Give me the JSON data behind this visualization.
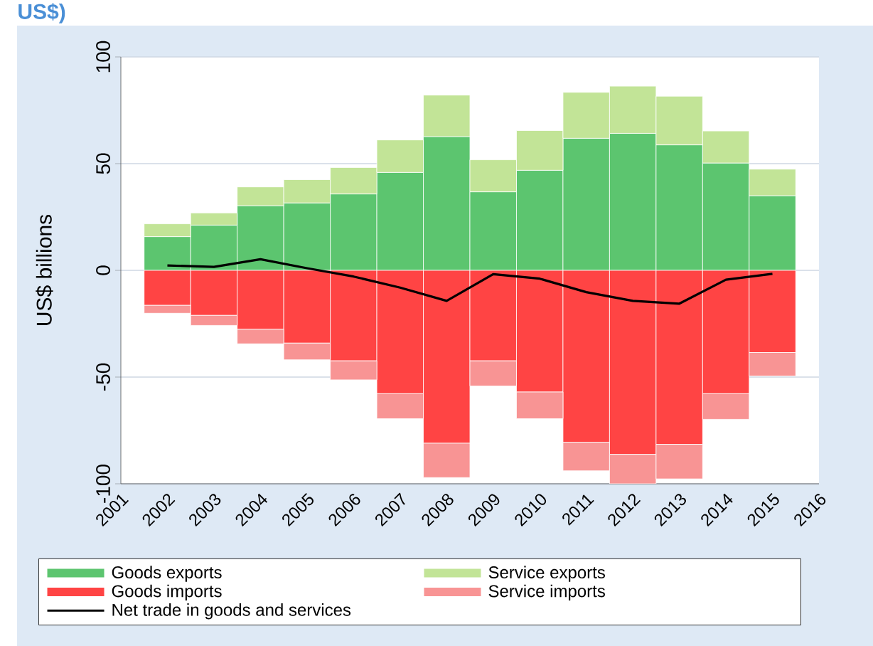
{
  "chart_data": {
    "type": "bar",
    "title": "US$)",
    "ylabel": "US$ billions",
    "stacked": true,
    "grid": "y",
    "legend": "bottom",
    "x": [
      2002,
      2003,
      2004,
      2005,
      2006,
      2007,
      2008,
      2009,
      2010,
      2011,
      2012,
      2013,
      2014,
      2015
    ],
    "xlim": [
      2001,
      2016
    ],
    "xticks": [
      2001,
      2002,
      2003,
      2004,
      2005,
      2006,
      2007,
      2008,
      2009,
      2010,
      2011,
      2012,
      2013,
      2014,
      2015,
      2016
    ],
    "ylim": [
      -100,
      100
    ],
    "yticks": [
      -100,
      -50,
      0,
      50,
      100
    ],
    "series": [
      {
        "name": "Goods exports",
        "color": "#5cc56f",
        "values": [
          15.8,
          21.2,
          30.3,
          31.6,
          35.8,
          45.9,
          62.7,
          36.8,
          46.9,
          61.9,
          64.2,
          58.8,
          50.3,
          35.0
        ]
      },
      {
        "name": "Service exports",
        "color": "#c2e497",
        "values": [
          6.0,
          5.7,
          8.8,
          10.9,
          12.4,
          15.2,
          19.4,
          15.0,
          18.6,
          21.5,
          22.1,
          22.8,
          15.0,
          12.4
        ]
      },
      {
        "name": "Goods imports",
        "color": "#ff4444",
        "values": [
          -16.4,
          -21.1,
          -27.6,
          -34.1,
          -42.4,
          -57.8,
          -81.0,
          -42.4,
          -57.0,
          -80.5,
          -86.2,
          -81.5,
          -57.8,
          -38.5
        ]
      },
      {
        "name": "Service imports",
        "color": "#f89494",
        "values": [
          -3.7,
          -4.7,
          -6.8,
          -7.8,
          -8.9,
          -11.7,
          -16.1,
          -11.8,
          -12.5,
          -13.4,
          -13.8,
          -16.2,
          -12.0,
          -11.0
        ]
      },
      {
        "name": "Net trade in goods and services",
        "type": "line",
        "color": "#000000",
        "values": [
          2.3,
          1.6,
          5.2,
          1.0,
          -2.9,
          -8.1,
          -14.3,
          -1.8,
          -3.9,
          -10.2,
          -14.3,
          -15.6,
          -4.4,
          -1.6
        ]
      }
    ]
  }
}
